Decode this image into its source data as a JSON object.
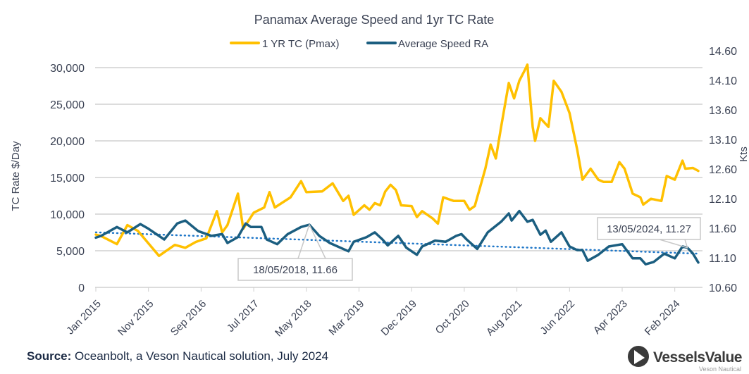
{
  "chart_data": {
    "type": "line",
    "title": "Panamax Average Speed and 1yr TC Rate",
    "ylabel": "TC Rate $/Day",
    "y2label": "Kts",
    "ylim": [
      0,
      30000
    ],
    "y2lim": [
      10.6,
      14.6
    ],
    "y_ticks": [
      "0",
      "5,000",
      "10,000",
      "15,000",
      "20,000",
      "25,000",
      "30,000"
    ],
    "y2_ticks": [
      "10.60",
      "11.10",
      "11.60",
      "12.10",
      "12.60",
      "13.10",
      "13.60",
      "14.10",
      "14.60"
    ],
    "x_ticks": [
      "Jan 2015",
      "Nov 2015",
      "Sep 2016",
      "Jul 2017",
      "May 2018",
      "Mar 2019",
      "Dec 2019",
      "Oct 2020",
      "Aug 2021",
      "Jun 2022",
      "Apr 2023",
      "Feb 2024"
    ],
    "grid": true,
    "legend": "top",
    "series": [
      {
        "name": "1 YR TC (Pmax)",
        "axis": "left",
        "color": "#FFC000",
        "points": [
          [
            "2015-01-01",
            7200
          ],
          [
            "2015-02-01",
            7000
          ],
          [
            "2015-05-01",
            5900
          ],
          [
            "2015-07-01",
            8500
          ],
          [
            "2015-09-01",
            7700
          ],
          [
            "2016-01-01",
            4300
          ],
          [
            "2016-04-01",
            5800
          ],
          [
            "2016-06-01",
            5400
          ],
          [
            "2016-08-01",
            6200
          ],
          [
            "2016-10-01",
            6700
          ],
          [
            "2016-12-01",
            10400
          ],
          [
            "2017-01-01",
            7500
          ],
          [
            "2017-02-01",
            8500
          ],
          [
            "2017-04-01",
            12800
          ],
          [
            "2017-05-01",
            8000
          ],
          [
            "2017-07-01",
            10200
          ],
          [
            "2017-09-01",
            10900
          ],
          [
            "2017-10-01",
            13000
          ],
          [
            "2017-11-01",
            10900
          ],
          [
            "2018-02-01",
            12300
          ],
          [
            "2018-04-01",
            14500
          ],
          [
            "2018-05-01",
            13000
          ],
          [
            "2018-08-01",
            13100
          ],
          [
            "2018-10-01",
            14200
          ],
          [
            "2018-12-01",
            11800
          ],
          [
            "2019-01-01",
            12500
          ],
          [
            "2019-02-01",
            9900
          ],
          [
            "2019-04-01",
            11200
          ],
          [
            "2019-05-01",
            10600
          ],
          [
            "2019-06-01",
            11500
          ],
          [
            "2019-07-01",
            11200
          ],
          [
            "2019-08-01",
            13100
          ],
          [
            "2019-09-01",
            14000
          ],
          [
            "2019-10-01",
            13300
          ],
          [
            "2019-11-01",
            11200
          ],
          [
            "2020-01-01",
            11100
          ],
          [
            "2020-02-01",
            9600
          ],
          [
            "2020-03-01",
            10400
          ],
          [
            "2020-05-01",
            9400
          ],
          [
            "2020-06-01",
            8700
          ],
          [
            "2020-07-01",
            12300
          ],
          [
            "2020-09-01",
            11800
          ],
          [
            "2020-11-01",
            11800
          ],
          [
            "2020-12-01",
            10600
          ],
          [
            "2021-01-01",
            11100
          ],
          [
            "2021-03-01",
            16200
          ],
          [
            "2021-04-01",
            19500
          ],
          [
            "2021-05-01",
            17600
          ],
          [
            "2021-06-01",
            21900
          ],
          [
            "2021-07-15",
            27900
          ],
          [
            "2021-08-15",
            25800
          ],
          [
            "2021-09-15",
            28200
          ],
          [
            "2021-10-15",
            29600
          ],
          [
            "2021-11-01",
            30400
          ],
          [
            "2021-12-01",
            21900
          ],
          [
            "2021-12-15",
            20000
          ],
          [
            "2022-01-15",
            23100
          ],
          [
            "2022-03-01",
            21900
          ],
          [
            "2022-04-01",
            28200
          ],
          [
            "2022-05-15",
            26700
          ],
          [
            "2022-07-01",
            23800
          ],
          [
            "2022-08-15",
            18800
          ],
          [
            "2022-09-15",
            14700
          ],
          [
            "2022-11-01",
            16200
          ],
          [
            "2022-12-15",
            14700
          ],
          [
            "2023-01-15",
            14400
          ],
          [
            "2023-03-01",
            14400
          ],
          [
            "2023-04-15",
            17100
          ],
          [
            "2023-05-15",
            16200
          ],
          [
            "2023-07-01",
            12800
          ],
          [
            "2023-08-15",
            12300
          ],
          [
            "2023-09-01",
            11300
          ],
          [
            "2023-10-15",
            12100
          ],
          [
            "2023-12-15",
            11800
          ],
          [
            "2024-01-15",
            15200
          ],
          [
            "2024-03-01",
            14700
          ],
          [
            "2024-04-15",
            17300
          ],
          [
            "2024-05-01",
            16200
          ],
          [
            "2024-06-15",
            16300
          ],
          [
            "2024-07-15",
            15900
          ]
        ]
      },
      {
        "name": "Average Speed RA",
        "axis": "right",
        "color": "#1B5E80",
        "points": [
          [
            "2015-01-01",
            11.44
          ],
          [
            "2015-02-01",
            11.47
          ],
          [
            "2015-05-01",
            11.62
          ],
          [
            "2015-07-01",
            11.53
          ],
          [
            "2015-09-15",
            11.67
          ],
          [
            "2015-11-01",
            11.59
          ],
          [
            "2016-02-01",
            11.41
          ],
          [
            "2016-04-15",
            11.68
          ],
          [
            "2016-06-01",
            11.73
          ],
          [
            "2016-08-15",
            11.55
          ],
          [
            "2016-11-01",
            11.47
          ],
          [
            "2017-01-01",
            11.5
          ],
          [
            "2017-02-01",
            11.35
          ],
          [
            "2017-04-01",
            11.45
          ],
          [
            "2017-05-15",
            11.68
          ],
          [
            "2017-06-15",
            11.62
          ],
          [
            "2017-08-15",
            11.62
          ],
          [
            "2017-09-15",
            11.41
          ],
          [
            "2017-11-15",
            11.33
          ],
          [
            "2018-01-15",
            11.5
          ],
          [
            "2018-04-01",
            11.62
          ],
          [
            "2018-05-18",
            11.66
          ],
          [
            "2018-07-15",
            11.47
          ],
          [
            "2018-09-15",
            11.35
          ],
          [
            "2019-01-01",
            11.21
          ],
          [
            "2019-02-01",
            11.37
          ],
          [
            "2019-04-15",
            11.45
          ],
          [
            "2019-06-01",
            11.53
          ],
          [
            "2019-07-15",
            11.41
          ],
          [
            "2019-08-15",
            11.31
          ],
          [
            "2019-10-15",
            11.47
          ],
          [
            "2019-12-01",
            11.27
          ],
          [
            "2020-02-01",
            11.15
          ],
          [
            "2020-03-01",
            11.29
          ],
          [
            "2020-05-15",
            11.39
          ],
          [
            "2020-07-15",
            11.37
          ],
          [
            "2020-09-15",
            11.47
          ],
          [
            "2020-10-15",
            11.5
          ],
          [
            "2020-11-15",
            11.41
          ],
          [
            "2021-01-15",
            11.25
          ],
          [
            "2021-03-15",
            11.53
          ],
          [
            "2021-06-01",
            11.71
          ],
          [
            "2021-07-15",
            11.85
          ],
          [
            "2021-08-01",
            11.73
          ],
          [
            "2021-09-15",
            11.89
          ],
          [
            "2021-11-01",
            11.71
          ],
          [
            "2021-12-01",
            11.74
          ],
          [
            "2022-01-15",
            11.49
          ],
          [
            "2022-02-15",
            11.56
          ],
          [
            "2022-03-15",
            11.37
          ],
          [
            "2022-05-15",
            11.53
          ],
          [
            "2022-07-01",
            11.29
          ],
          [
            "2022-08-15",
            11.23
          ],
          [
            "2022-09-15",
            11.23
          ],
          [
            "2022-10-15",
            11.05
          ],
          [
            "2022-12-15",
            11.15
          ],
          [
            "2023-02-15",
            11.29
          ],
          [
            "2023-05-01",
            11.33
          ],
          [
            "2023-07-01",
            11.09
          ],
          [
            "2023-08-15",
            11.09
          ],
          [
            "2023-09-15",
            10.99
          ],
          [
            "2023-11-01",
            11.03
          ],
          [
            "2024-01-01",
            11.17
          ],
          [
            "2024-03-01",
            11.09
          ],
          [
            "2024-04-15",
            11.29
          ],
          [
            "2024-05-13",
            11.27
          ],
          [
            "2024-06-15",
            11.17
          ],
          [
            "2024-07-15",
            11.02
          ]
        ]
      }
    ],
    "trendline": {
      "axis": "right",
      "color": "#1F77C8",
      "style": "dotted",
      "start": [
        "2015-01-01",
        11.53
      ],
      "end": [
        "2024-07-15",
        11.17
      ]
    },
    "annotations": [
      {
        "label": "18/05/2018, 11.66",
        "date": "2018-05-18",
        "value": 11.66
      },
      {
        "label": "13/05/2024, 11.27",
        "date": "2024-05-13",
        "value": 11.27
      }
    ]
  },
  "footer": {
    "source_label": "Source:",
    "source_text": " Oceanbolt, a Veson Nautical solution, July 2024"
  },
  "logo": {
    "name": "VesselsValue",
    "sub": "Veson Nautical"
  }
}
